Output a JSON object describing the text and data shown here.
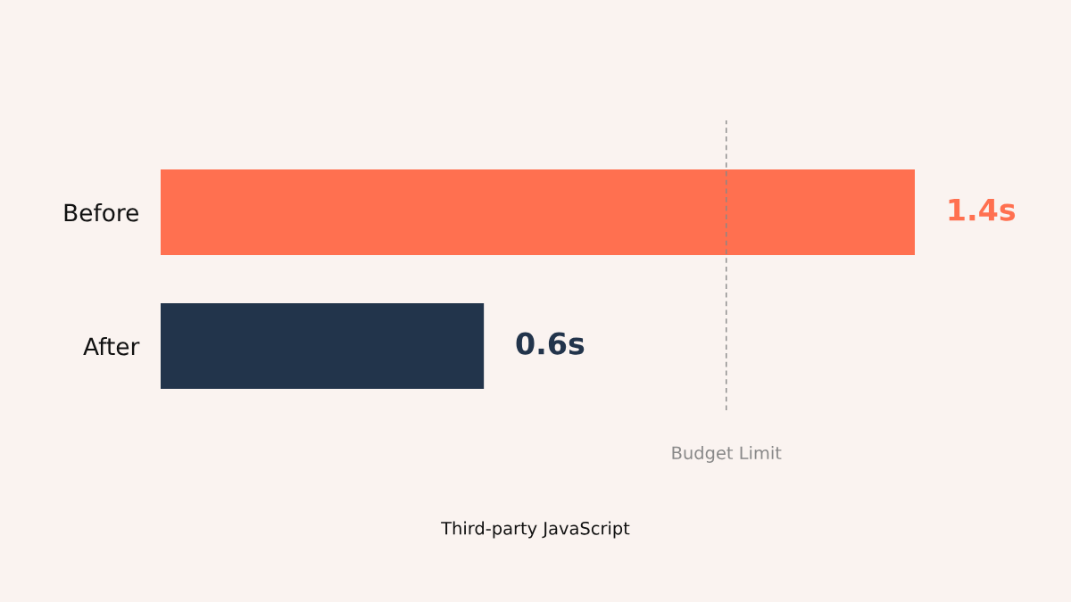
{
  "chart_data": {
    "type": "bar",
    "orientation": "horizontal",
    "annotations": [
      "Third-party JavaScript"
    ],
    "categories": [
      "Before",
      "After"
    ],
    "values": [
      1.4,
      0.6
    ],
    "colors": [
      "#ff7050",
      "#22344b"
    ],
    "value_labels": [
      "1.4s",
      "0.6s"
    ],
    "xlim": [
      0,
      1.4
    ],
    "tick_labels": "y",
    "grid": false,
    "legend": false,
    "ref_lines": [
      {
        "axis": "x",
        "value": 1.05,
        "label": "Budget Limit",
        "color": "#888888",
        "line_style": "dashed"
      }
    ]
  }
}
